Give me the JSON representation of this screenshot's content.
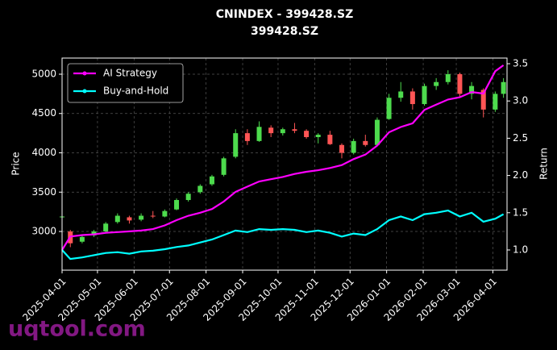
{
  "chart_data": {
    "type": "candlestick",
    "title": "CNINDEX - 399428.SZ",
    "subtitle": "399428.SZ",
    "ylabel": "Price",
    "y2label": "Return",
    "watermark": "uqtool.com",
    "up_color": "#4ddb4d",
    "down_color": "#ff5555",
    "grid": true,
    "legend": "upper left",
    "xlim": [
      "2025-04-01",
      "2026-04-13"
    ],
    "xticks": [
      "2025-04-01",
      "2025-05-01",
      "2025-06-01",
      "2025-07-01",
      "2025-08-01",
      "2025-09-01",
      "2025-10-01",
      "2025-11-01",
      "2025-12-01",
      "2026-01-01",
      "2026-02-01",
      "2026-03-01",
      "2026-04-01"
    ],
    "ylim": [
      2508,
      5205
    ],
    "yticks": [
      3000,
      3500,
      4000,
      4500,
      5000
    ],
    "y2lim": [
      0.729,
      3.576
    ],
    "y2ticks": [
      {
        "value": 1,
        "label": "1.0"
      },
      1.5,
      {
        "value": 2,
        "label": "2.0"
      },
      2.5,
      {
        "value": 3,
        "label": "3.0"
      },
      3.5
    ],
    "x": [
      "2025-04-01",
      "2025-04-08",
      "2025-04-18",
      "2025-04-28",
      "2025-05-08",
      "2025-05-18",
      "2025-05-28",
      "2025-06-07",
      "2025-06-17",
      "2025-06-27",
      "2025-07-07",
      "2025-07-17",
      "2025-07-27",
      "2025-08-06",
      "2025-08-16",
      "2025-08-26",
      "2025-09-05",
      "2025-09-15",
      "2025-09-25",
      "2025-10-05",
      "2025-10-15",
      "2025-10-25",
      "2025-11-04",
      "2025-11-14",
      "2025-11-24",
      "2025-12-04",
      "2025-12-14",
      "2025-12-24",
      "2026-01-03",
      "2026-01-13",
      "2026-01-23",
      "2026-02-02",
      "2026-02-12",
      "2026-02-22",
      "2026-03-04",
      "2026-03-14",
      "2026-03-24",
      "2026-04-03",
      "2026-04-10"
    ],
    "open": [
      3180,
      3000,
      2870,
      2950,
      3000,
      3120,
      3180,
      3150,
      3200,
      3190,
      3280,
      3400,
      3500,
      3600,
      3720,
      3950,
      4250,
      4150,
      4320,
      4250,
      4300,
      4280,
      4200,
      4230,
      4100,
      4000,
      4150,
      4100,
      4430,
      4700,
      4780,
      4620,
      4850,
      4900,
      5000,
      4750,
      4800,
      4550,
      4750
    ],
    "high": [
      3220,
      3020,
      2950,
      3020,
      3120,
      3230,
      3200,
      3230,
      3260,
      3280,
      3420,
      3500,
      3600,
      3720,
      3950,
      4300,
      4300,
      4400,
      4350,
      4320,
      4380,
      4300,
      4250,
      4280,
      4120,
      4180,
      4230,
      4450,
      4750,
      4900,
      4820,
      4880,
      4950,
      5050,
      5020,
      4900,
      4820,
      4780,
      4950
    ],
    "low": [
      3150,
      2800,
      2850,
      2930,
      2990,
      3100,
      3100,
      3130,
      3170,
      3180,
      3270,
      3380,
      3480,
      3580,
      3700,
      3930,
      4100,
      4140,
      4200,
      4220,
      4250,
      4180,
      4120,
      4100,
      3930,
      3980,
      4080,
      4090,
      4420,
      4650,
      4550,
      4600,
      4800,
      4870,
      4700,
      4680,
      4450,
      4520,
      4700
    ],
    "close": [
      3190,
      2850,
      2930,
      3000,
      3100,
      3200,
      3140,
      3200,
      3190,
      3260,
      3400,
      3480,
      3580,
      3700,
      3930,
      4250,
      4150,
      4330,
      4250,
      4300,
      4280,
      4200,
      4230,
      4110,
      4000,
      4150,
      4100,
      4420,
      4700,
      4780,
      4620,
      4850,
      4900,
      5000,
      4750,
      4850,
      4550,
      4750,
      4900
    ],
    "series": [
      {
        "name": "AI Strategy",
        "color": "#ff00ff",
        "axis": "y2",
        "values": [
          1.0,
          1.18,
          1.2,
          1.21,
          1.23,
          1.24,
          1.25,
          1.26,
          1.28,
          1.33,
          1.4,
          1.46,
          1.5,
          1.55,
          1.65,
          1.78,
          1.85,
          1.92,
          1.95,
          1.98,
          2.02,
          2.05,
          2.07,
          2.1,
          2.14,
          2.22,
          2.28,
          2.4,
          2.58,
          2.65,
          2.7,
          2.88,
          2.95,
          3.02,
          3.05,
          3.12,
          3.1,
          3.4,
          3.48
        ]
      },
      {
        "name": "Buy-and-Hold",
        "color": "#00ffff",
        "axis": "y2",
        "values": [
          1.0,
          0.88,
          0.9,
          0.93,
          0.96,
          0.97,
          0.95,
          0.98,
          0.99,
          1.01,
          1.04,
          1.06,
          1.1,
          1.14,
          1.2,
          1.26,
          1.24,
          1.28,
          1.27,
          1.28,
          1.27,
          1.24,
          1.26,
          1.23,
          1.18,
          1.22,
          1.2,
          1.28,
          1.4,
          1.45,
          1.4,
          1.48,
          1.5,
          1.53,
          1.45,
          1.5,
          1.38,
          1.42,
          1.48
        ]
      }
    ]
  }
}
